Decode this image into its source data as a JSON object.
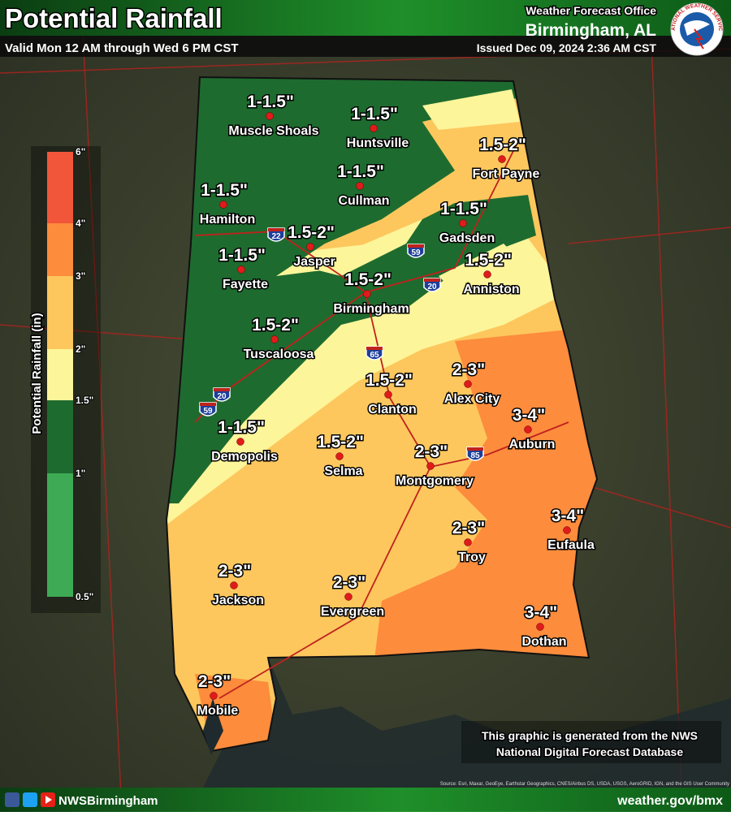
{
  "header": {
    "title": "Potential Rainfall",
    "subtitle": "Valid Mon 12 AM through Wed 6 PM CST",
    "office": "Weather Forecast Office",
    "office_city": "Birmingham, AL",
    "issued": "Issued Dec 09, 2024 2:36 AM CST",
    "logo_text": "NATIONAL WEATHER SERVICE"
  },
  "legend": {
    "title": "Potential Rainfall (in)",
    "ticks": [
      "6\"",
      "4\"",
      "3\"",
      "2\"",
      "1.5\"",
      "1\"",
      "0.5\""
    ],
    "colors": [
      "#f2563a",
      "#fd8c3c",
      "#fdc75d",
      "#fdf59a",
      "#1e6b2f",
      "#3faa55"
    ]
  },
  "cities": [
    {
      "name": "Muscle Shoals",
      "amount": "1-1.5\""
    },
    {
      "name": "Huntsville",
      "amount": "1-1.5\""
    },
    {
      "name": "Fort Payne",
      "amount": "1.5-2\""
    },
    {
      "name": "Cullman",
      "amount": "1-1.5\""
    },
    {
      "name": "Hamilton",
      "amount": "1-1.5\""
    },
    {
      "name": "Gadsden",
      "amount": "1-1.5\""
    },
    {
      "name": "Jasper",
      "amount": "1.5-2\""
    },
    {
      "name": "Fayette",
      "amount": "1-1.5\""
    },
    {
      "name": "Anniston",
      "amount": "1.5-2\""
    },
    {
      "name": "Birmingham",
      "amount": "1.5-2\""
    },
    {
      "name": "Tuscaloosa",
      "amount": "1.5-2\""
    },
    {
      "name": "Alex City",
      "amount": "2-3\""
    },
    {
      "name": "Clanton",
      "amount": "1.5-2\""
    },
    {
      "name": "Auburn",
      "amount": "3-4\""
    },
    {
      "name": "Demopolis",
      "amount": "1-1.5\""
    },
    {
      "name": "Selma",
      "amount": "1.5-2\""
    },
    {
      "name": "Montgomery",
      "amount": "2-3\""
    },
    {
      "name": "Eufaula",
      "amount": "3-4\""
    },
    {
      "name": "Troy",
      "amount": "2-3\""
    },
    {
      "name": "Jackson",
      "amount": "2-3\""
    },
    {
      "name": "Evergreen",
      "amount": "2-3\""
    },
    {
      "name": "Dothan",
      "amount": "3-4\""
    },
    {
      "name": "Mobile",
      "amount": "2-3\""
    }
  ],
  "interstates": [
    "22",
    "59",
    "20",
    "65",
    "85",
    "20",
    "59"
  ],
  "note": {
    "line1": "This graphic is generated from the NWS",
    "line2": "National Digital Forecast Database"
  },
  "source": "Source: Esri, Maxar, GeoEye, Earthstar Geographics, CNES/Airbus DS, USDA, USGS, AeroGRID, IGN, and the GIS User Community",
  "footer": {
    "handle": "NWSBirmingham",
    "url": "weather.gov/bmx"
  }
}
